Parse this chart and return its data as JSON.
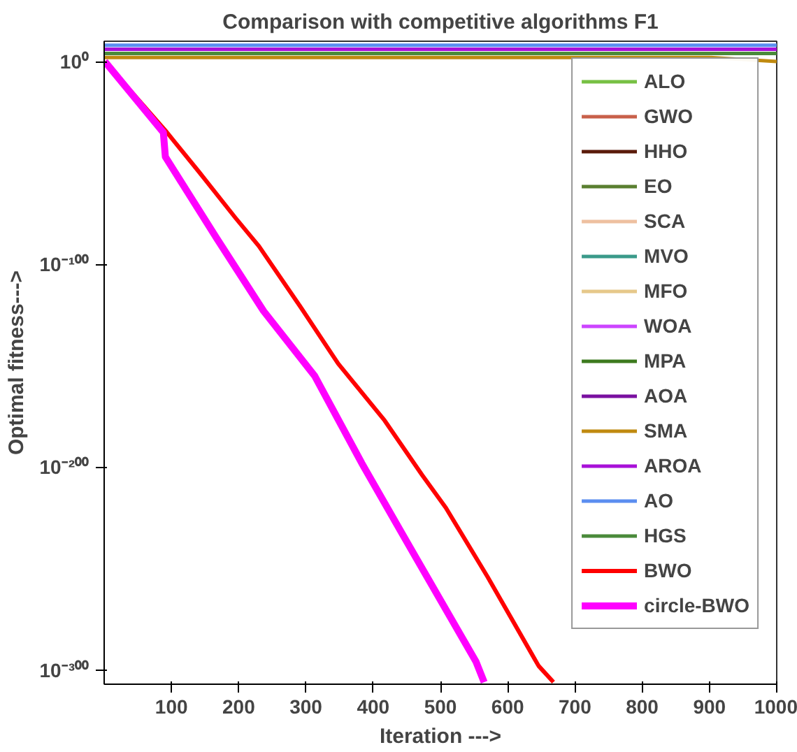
{
  "chart_data": {
    "type": "line",
    "title": "Comparison with competitive algorithms F1",
    "xlabel": "Iteration --->",
    "ylabel": "Optimal fitness--->",
    "log": true,
    "xlim": [
      0,
      1000
    ],
    "ylim": [
      1e-307,
      10000000000.0
    ],
    "xticks": [
      100,
      200,
      300,
      400,
      500,
      600,
      700,
      800,
      900,
      1000
    ],
    "yticks": [
      {
        "value": 1,
        "label": "10⁰"
      },
      {
        "value": 1e-100,
        "label": "10⁻¹⁰⁰"
      },
      {
        "value": 1e-200,
        "label": "10⁻²⁰⁰"
      },
      {
        "value": 1e-300,
        "label": "10⁻³⁰⁰"
      }
    ],
    "legend": "top right",
    "grid": false,
    "line_style": "solid",
    "marker": "none",
    "series": [
      {
        "name": "ALO",
        "color": "#77c043"
      },
      {
        "name": "GWO",
        "color": "#c8604a"
      },
      {
        "name": "HHO",
        "color": "#5a1a0a"
      },
      {
        "name": "EO",
        "color": "#5a7f30"
      },
      {
        "name": "SCA",
        "color": "#eec0a0"
      },
      {
        "name": "MVO",
        "color": "#3a9a8a"
      },
      {
        "name": "MFO",
        "color": "#e6c88a"
      },
      {
        "name": "WOA",
        "color": "#cc44ff"
      },
      {
        "name": "MPA",
        "color": "#3d7a1e"
      },
      {
        "name": "AOA",
        "color": "#7a10a0"
      },
      {
        "name": "SMA",
        "color": "#c08a10",
        "x": [
          1,
          500,
          900,
          1000
        ],
        "values": [
          100.0,
          100.0,
          100.0,
          1.0
        ]
      },
      {
        "name": "AROA",
        "color": "#a810d8",
        "x": [
          1,
          500,
          1000
        ],
        "values": [
          1000000.0,
          1000000.0,
          1000000.0
        ]
      },
      {
        "name": "AO",
        "color": "#5b8ef0",
        "x": [
          1,
          500,
          1000
        ],
        "values": [
          100000000.0,
          100000000.0,
          100000000.0
        ]
      },
      {
        "name": "HGS",
        "color": "#4a8a3a",
        "x": [
          1,
          500,
          1000
        ],
        "values": [
          10000.0,
          10000.0,
          10000.0
        ]
      },
      {
        "name": "BWO",
        "color": "#ff0000",
        "x": [
          1,
          91,
          140,
          195,
          230,
          292,
          348,
          417,
          473,
          508,
          570,
          646,
          668
        ],
        "values": [
          1,
          1e-34,
          1e-54,
          1e-77,
          1e-91,
          1e-121,
          1e-149,
          1e-177,
          1e-204,
          1e-220,
          1e-254,
          1e-298,
          1e-306
        ]
      },
      {
        "name": "circle-BWO",
        "color": "#ff00ff",
        "x": [
          1,
          88,
          91,
          167,
          237,
          313,
          383,
          459,
          553,
          565
        ],
        "values": [
          1,
          1e-35,
          1e-47,
          1e-87,
          1e-123,
          1e-155,
          1e-198,
          1e-242,
          1e-296,
          1e-306
        ]
      }
    ]
  }
}
